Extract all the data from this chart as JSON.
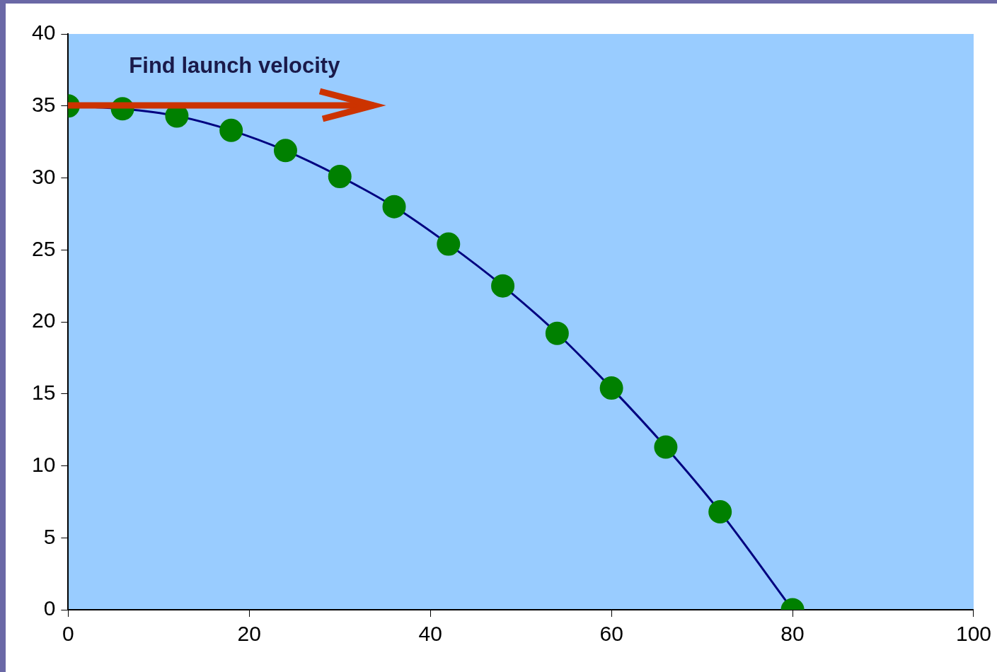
{
  "chart_data": {
    "type": "line",
    "x": [
      0,
      6,
      12,
      18,
      24,
      30,
      36,
      42,
      48,
      54,
      60,
      66,
      72,
      80
    ],
    "series": [
      {
        "color": "#000080",
        "colors": [
          "#008000",
          "#008000",
          "#008000",
          "#008000",
          "#008000",
          "#008000",
          "#008000",
          "#008000",
          "#008000",
          "#008000",
          "#008000",
          "#008000",
          "#008000",
          "#008000"
        ],
        "values": [
          35,
          34.8,
          34.3,
          33.3,
          31.9,
          30.1,
          28,
          25.4,
          22.5,
          19.2,
          15.4,
          11.3,
          6.8,
          0
        ]
      }
    ],
    "xlim": [
      0,
      100
    ],
    "xticks": [
      0,
      20,
      40,
      60,
      80,
      100
    ],
    "ylim": [
      0,
      40
    ],
    "yticks": [
      0,
      5,
      10,
      15,
      20,
      25,
      30,
      35,
      40
    ],
    "annotations": [
      "Find launch velocity"
    ],
    "grid": false,
    "legend": false,
    "marker": "circle",
    "line_style": "solid"
  }
}
